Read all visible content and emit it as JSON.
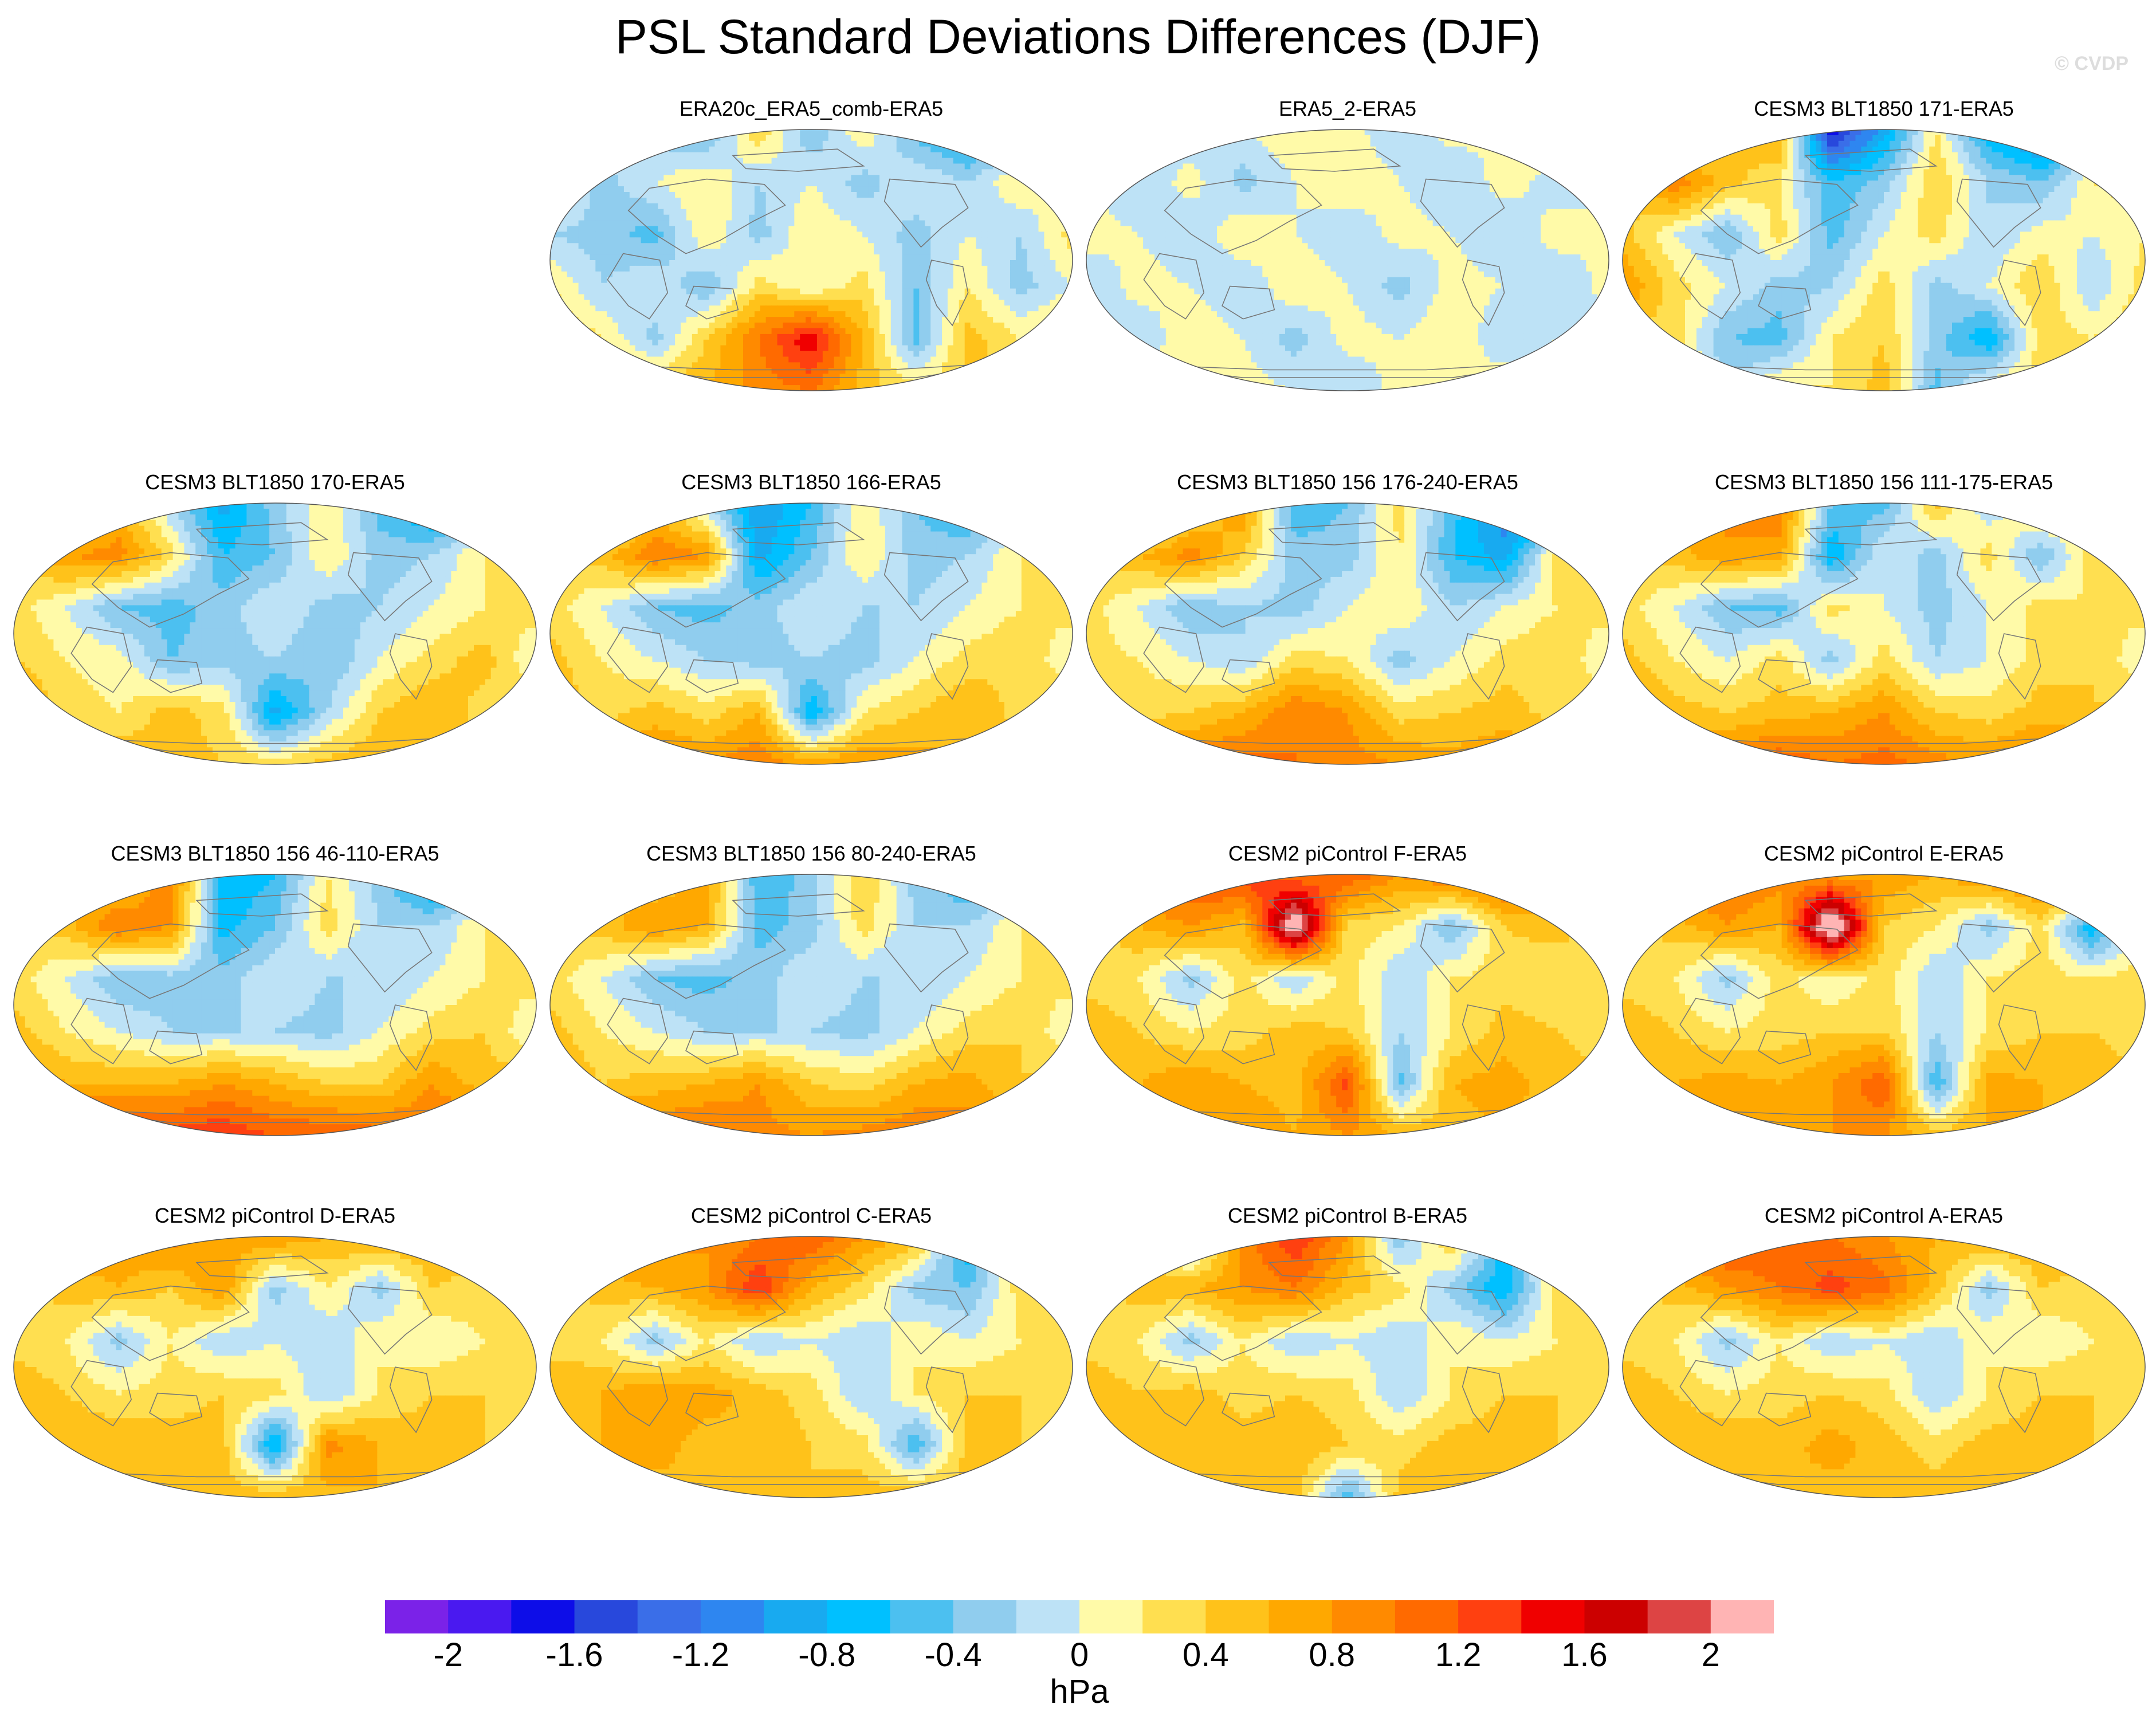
{
  "title": "PSL Standard Deviations Differences (DJF)",
  "watermark": "© CVDP",
  "panels": [
    {
      "title": "ERA20c_ERA5_comb-ERA5",
      "base": 0.0,
      "field": [
        [
          0,
          0,
          -0.3,
          -0.5,
          0.4,
          -0.4,
          0.2,
          -0.5,
          -0.9,
          -0.4,
          0
        ],
        [
          0.3,
          -0.3,
          0,
          0.2,
          -0.2,
          0,
          -0.3,
          0,
          -0.2,
          0.2,
          -0.1
        ],
        [
          -0.2,
          -0.3,
          -0.5,
          0.2,
          -0.3,
          0.2,
          0,
          -0.3,
          0,
          -0.2,
          0.3
        ],
        [
          0.2,
          -0.2,
          0,
          -0.4,
          0.3,
          0,
          0.3,
          -0.4,
          0.2,
          -0.3,
          0
        ],
        [
          0.5,
          0.2,
          -0.3,
          0.4,
          1.0,
          1.6,
          0.6,
          -0.5,
          0.5,
          0.2,
          0.4
        ],
        [
          0.3,
          0.4,
          0.5,
          0.6,
          0.9,
          1.0,
          0.5,
          0.3,
          0.4,
          0.5,
          0.3
        ]
      ]
    },
    {
      "title": "ERA5_2-ERA5",
      "base": 0.0,
      "field": [
        [
          0.1,
          0.2,
          -0.2,
          0,
          0.2,
          0.1,
          -0.2,
          0.1,
          0,
          0.2,
          0.1
        ],
        [
          0,
          -0.2,
          0.1,
          -0.3,
          0,
          0.2,
          0,
          -0.2,
          0.1,
          -0.1,
          0
        ],
        [
          0.1,
          0,
          -0.2,
          0.2,
          0,
          -0.2,
          0.1,
          0,
          -0.2,
          0.1,
          0
        ],
        [
          -0.2,
          0.1,
          0,
          -0.2,
          0.2,
          0,
          -0.3,
          0.1,
          0,
          -0.2,
          0.1
        ],
        [
          0.1,
          -0.2,
          0.2,
          0,
          -0.3,
          0.1,
          0,
          0.2,
          -0.2,
          0,
          -0.1
        ],
        [
          0,
          0.2,
          -0.1,
          0.1,
          0,
          -0.2,
          0.1,
          0,
          0.2,
          0.1,
          0
        ]
      ]
    },
    {
      "title": "CESM3 BLT1850 171-ERA5",
      "base": 0.0,
      "field": [
        [
          -0.3,
          -0.5,
          0.4,
          0.7,
          -1.8,
          -0.9,
          0.2,
          -0.8,
          -1.3,
          -0.6,
          0
        ],
        [
          0.3,
          1.0,
          0.5,
          0.2,
          -0.6,
          -0.3,
          0.4,
          -0.2,
          -0.4,
          0.2,
          0.3
        ],
        [
          0.5,
          0,
          -0.4,
          0.3,
          -0.5,
          0,
          0.3,
          -0.2,
          0.1,
          0,
          0.2
        ],
        [
          0.8,
          0.3,
          0,
          -0.3,
          -0.2,
          0.3,
          -0.3,
          0,
          0.4,
          -0.2,
          0.3
        ],
        [
          0.4,
          0.3,
          -0.4,
          -0.5,
          0.2,
          0.4,
          -0.3,
          -0.8,
          0.3,
          0.2,
          0.4
        ],
        [
          0.2,
          0.4,
          -0.2,
          0.3,
          0.2,
          0.5,
          -0.5,
          0.2,
          0.3,
          0.2,
          0
        ]
      ]
    },
    {
      "title": "CESM3 BLT1850 170-ERA5",
      "base": 0.0,
      "field": [
        [
          -0.8,
          -0.3,
          0.6,
          -0.2,
          -0.9,
          -0.3,
          0.2,
          -0.5,
          -1.0,
          -0.3,
          0
        ],
        [
          0.3,
          0.8,
          0.9,
          0.3,
          -0.6,
          -0.4,
          0.2,
          -0.3,
          -0.2,
          0.2,
          0.3
        ],
        [
          0.3,
          0,
          -0.4,
          -0.5,
          -0.3,
          0,
          -0.3,
          -0.2,
          0,
          0.2,
          0.3
        ],
        [
          0.4,
          0.2,
          0.1,
          -0.4,
          -0.3,
          -0.2,
          -0.4,
          0,
          0.3,
          0.5,
          0
        ],
        [
          0.8,
          0.3,
          0.2,
          0.5,
          0.3,
          -0.9,
          -0.2,
          0.4,
          0.6,
          0.3,
          0.5
        ],
        [
          0.4,
          0.5,
          0.6,
          0.5,
          0.4,
          0.3,
          0.5,
          0.6,
          0.5,
          0.4,
          0.3
        ]
      ]
    },
    {
      "title": "CESM3 BLT1850 166-ERA5",
      "base": 0.0,
      "field": [
        [
          -0.8,
          -0.5,
          0.5,
          -0.2,
          -1.0,
          -0.6,
          0.2,
          -0.4,
          -0.8,
          -0.2,
          0.5
        ],
        [
          0.3,
          0.5,
          1.0,
          0.8,
          -0.9,
          -0.4,
          0.2,
          -0.3,
          -0.2,
          0.2,
          0.3
        ],
        [
          0.3,
          0,
          -0.4,
          -0.5,
          -0.3,
          0,
          -0.2,
          -0.2,
          0,
          0.2,
          0.3
        ],
        [
          0.5,
          0.2,
          0,
          -0.2,
          -0.3,
          -0.2,
          -0.3,
          0,
          0.3,
          0.4,
          0
        ],
        [
          0.6,
          0.3,
          0.5,
          0.3,
          0.6,
          -0.8,
          0.2,
          0.4,
          0.6,
          0.3,
          0.5
        ],
        [
          0.6,
          0.7,
          0.9,
          0.8,
          1.0,
          0.7,
          0.8,
          0.7,
          0.6,
          0.7,
          0.6
        ]
      ]
    },
    {
      "title": "CESM3 BLT1850 156 176-240-ERA5",
      "base": 0.0,
      "field": [
        [
          -0.6,
          -0.9,
          0.3,
          0.8,
          -0.6,
          -0.4,
          0.3,
          -0.5,
          -1.2,
          -1.4,
          0
        ],
        [
          0.3,
          0.6,
          0.9,
          0.4,
          -0.3,
          -0.3,
          0.2,
          -0.6,
          -0.9,
          0.3,
          0.3
        ],
        [
          0.3,
          0,
          -0.4,
          -0.2,
          -0.3,
          0,
          0.2,
          -0.2,
          0,
          0.2,
          0.3
        ],
        [
          0.3,
          0.2,
          0,
          -0.2,
          0.3,
          0.2,
          -0.3,
          0,
          0.3,
          0.4,
          0
        ],
        [
          0.5,
          0.3,
          0.4,
          0.6,
          1.0,
          0.8,
          0.3,
          0.4,
          0.5,
          0.3,
          0.4
        ],
        [
          0.8,
          0.8,
          1.0,
          1.1,
          1.0,
          0.9,
          0.8,
          0.7,
          0.8,
          0.8,
          0.7
        ]
      ]
    },
    {
      "title": "CESM3 BLT1850 156 111-175-ERA5",
      "base": 0.0,
      "field": [
        [
          0.5,
          0.8,
          0.8,
          1.0,
          -0.4,
          -0.5,
          0.5,
          -0.2,
          0.4,
          0.5,
          0.3
        ],
        [
          0.3,
          0.5,
          0.8,
          0.7,
          -0.8,
          0,
          -0.3,
          0.3,
          -0.4,
          0.3,
          0.3
        ],
        [
          0.3,
          0,
          -0.4,
          -0.5,
          0.3,
          0,
          -0.3,
          0,
          0.3,
          0.2,
          0.3
        ],
        [
          0.5,
          0.2,
          0,
          0.3,
          -0.3,
          0.3,
          -0.2,
          0,
          0.3,
          0.4,
          0
        ],
        [
          0.8,
          0.5,
          0.4,
          0.5,
          0.6,
          0.8,
          0.4,
          0.3,
          0.5,
          0.4,
          0.5
        ],
        [
          0.8,
          0.9,
          1.0,
          1.2,
          1.0,
          1.1,
          0.9,
          0.8,
          1.0,
          0.9,
          0.8
        ]
      ]
    },
    {
      "title": "CESM3 BLT1850 156 46-110-ERA5",
      "base": 0.0,
      "field": [
        [
          -0.3,
          0.8,
          0.4,
          1.0,
          -0.8,
          -0.6,
          0.2,
          -0.3,
          -1.0,
          -0.3,
          0
        ],
        [
          0.3,
          0.5,
          1.0,
          0.8,
          -0.7,
          -0.4,
          0.3,
          -0.2,
          -0.2,
          0.2,
          0.3
        ],
        [
          0.3,
          0,
          -0.4,
          -0.3,
          -0.3,
          0,
          -0.2,
          -0.2,
          0,
          0.2,
          0.3
        ],
        [
          0.5,
          0.2,
          0,
          -0.2,
          -0.2,
          -0.2,
          -0.3,
          0,
          0.3,
          0.4,
          0
        ],
        [
          0.8,
          0.6,
          0.6,
          0.6,
          0.8,
          0.6,
          0.4,
          0.4,
          0.8,
          0.5,
          0.5
        ],
        [
          1.2,
          1.4,
          1.3,
          1.3,
          1.4,
          1.2,
          1.2,
          1.1,
          1.0,
          1.1,
          1.0
        ]
      ]
    },
    {
      "title": "CESM3 BLT1850 156 80-240-ERA5",
      "base": 0.0,
      "field": [
        [
          0.3,
          0.5,
          0.4,
          0.7,
          -0.6,
          -0.3,
          0.4,
          -0.3,
          -0.7,
          -0.2,
          0.3
        ],
        [
          0.3,
          0.5,
          0.8,
          0.6,
          -0.5,
          -0.3,
          0.3,
          -0.2,
          -0.2,
          0.2,
          0.3
        ],
        [
          0.3,
          0,
          -0.4,
          -0.5,
          -0.3,
          0,
          -0.2,
          -0.2,
          0,
          0.2,
          0.3
        ],
        [
          0.5,
          0.2,
          0,
          -0.2,
          -0.2,
          -0.2,
          -0.3,
          0,
          0.3,
          0.4,
          0
        ],
        [
          0.7,
          0.4,
          0.5,
          0.6,
          0.8,
          0.4,
          0.3,
          0.6,
          0.7,
          0.4,
          0.5
        ],
        [
          0.8,
          1.0,
          1.0,
          1.1,
          0.9,
          0.8,
          0.9,
          1.0,
          0.9,
          0.8,
          0.7
        ]
      ]
    },
    {
      "title": "CESM2 piControl F-ERA5",
      "base": 0.0,
      "field": [
        [
          1.0,
          1.2,
          1.3,
          1.4,
          1.0,
          1.2,
          0.8,
          1.1,
          1.2,
          1.0,
          0.9
        ],
        [
          0.3,
          0.6,
          0.8,
          0.5,
          2.4,
          0.3,
          0.2,
          -0.4,
          0.4,
          0.5,
          0.3
        ],
        [
          0.3,
          0.2,
          -0.3,
          0.3,
          -0.2,
          0.3,
          -0.2,
          0.2,
          0.3,
          0.2,
          0.3
        ],
        [
          0.6,
          0.4,
          0.2,
          0.3,
          0.5,
          0.4,
          -0.2,
          0.2,
          0.5,
          0.4,
          0.3
        ],
        [
          0.5,
          0.6,
          0.8,
          0.6,
          0.5,
          1.3,
          -0.5,
          0.6,
          0.7,
          0.5,
          0.4
        ],
        [
          0.4,
          0.5,
          0.6,
          0.8,
          0.6,
          0.8,
          0.6,
          0.5,
          0.6,
          0.5,
          0.4
        ]
      ]
    },
    {
      "title": "CESM2 piControl E-ERA5",
      "base": 0.0,
      "field": [
        [
          0.8,
          1.2,
          1.0,
          0.9,
          0.7,
          0.8,
          0.6,
          0.9,
          1.0,
          1.2,
          0.8
        ],
        [
          0.3,
          0.5,
          0.8,
          0.6,
          2.6,
          0.4,
          0.2,
          -0.3,
          0.3,
          -0.8,
          0.3
        ],
        [
          0.3,
          0.2,
          -0.3,
          0.3,
          0,
          0.3,
          -0.2,
          0.2,
          0.3,
          0.2,
          0.3
        ],
        [
          0.6,
          0.4,
          0.2,
          0.3,
          0.4,
          0.4,
          -0.2,
          0.2,
          0.4,
          0.4,
          0.3
        ],
        [
          0.5,
          0.6,
          0.7,
          0.6,
          0.8,
          1.2,
          -0.6,
          0.7,
          0.6,
          0.5,
          0.4
        ],
        [
          0.4,
          0.5,
          0.6,
          0.7,
          0.8,
          0.8,
          0.5,
          0.6,
          0.6,
          0.5,
          0.4
        ]
      ]
    },
    {
      "title": "CESM2 piControl D-ERA5",
      "base": 0.0,
      "field": [
        [
          0.6,
          0.8,
          0.7,
          0.9,
          0.7,
          0.8,
          0.6,
          0.7,
          0.6,
          0.5,
          0.4
        ],
        [
          0.3,
          0.5,
          0.6,
          0.4,
          0.8,
          -0.3,
          0.2,
          -0.3,
          0.4,
          0.3,
          0.3
        ],
        [
          0.3,
          0.2,
          -0.3,
          0.2,
          -0.2,
          0,
          -0.2,
          0.2,
          0,
          0.2,
          0.3
        ],
        [
          0.6,
          0.4,
          0.2,
          0.3,
          0.4,
          0.3,
          -0.2,
          0.2,
          0.4,
          0.4,
          0.3
        ],
        [
          0.5,
          0.6,
          0.6,
          0.5,
          0.5,
          -0.9,
          0.9,
          0.6,
          0.5,
          0.4,
          0.4
        ],
        [
          0.4,
          0.5,
          0.5,
          0.6,
          0.5,
          0.6,
          0.5,
          0.6,
          0.5,
          0.4,
          0.4
        ]
      ]
    },
    {
      "title": "CESM2 piControl C-ERA5",
      "base": 0.0,
      "field": [
        [
          0.6,
          0.8,
          0.9,
          0.8,
          1.0,
          1.2,
          0.8,
          0.6,
          -0.9,
          0.5,
          0.4
        ],
        [
          0.3,
          0.5,
          0.6,
          0.8,
          1.4,
          0.6,
          0.3,
          -0.3,
          -0.4,
          0.3,
          0.3
        ],
        [
          0.3,
          0.2,
          -0.3,
          0.2,
          -0.2,
          0,
          -0.2,
          0.2,
          0,
          0.2,
          0.3
        ],
        [
          0.6,
          0.6,
          0.8,
          0.7,
          0.5,
          0.3,
          -0.2,
          0.2,
          0.4,
          0.4,
          0.3
        ],
        [
          0.5,
          0.6,
          0.7,
          0.5,
          0.6,
          0.4,
          0.3,
          -0.6,
          0.5,
          0.4,
          0.4
        ],
        [
          0.4,
          0.5,
          0.5,
          0.6,
          0.5,
          0.4,
          0.5,
          0.6,
          0.5,
          0.4,
          0.4
        ]
      ]
    },
    {
      "title": "CESM2 piControl B-ERA5",
      "base": 0.0,
      "field": [
        [
          0.4,
          0.6,
          -0.5,
          0.9,
          1.4,
          0.8,
          -0.4,
          0.5,
          -0.6,
          0.3,
          0.4
        ],
        [
          0.3,
          0.5,
          0.6,
          0.8,
          1.0,
          0.5,
          0.3,
          -0.3,
          -0.8,
          0.3,
          0.3
        ],
        [
          0.3,
          0.2,
          -0.3,
          0.2,
          -0.2,
          0,
          -0.2,
          0.2,
          0,
          0.2,
          0.3
        ],
        [
          0.6,
          0.4,
          0.5,
          0.3,
          0.4,
          0.3,
          -0.2,
          0.2,
          0.4,
          0.4,
          0.3
        ],
        [
          0.5,
          0.6,
          0.6,
          0.5,
          0.6,
          0.4,
          0.3,
          0.5,
          0.5,
          0.4,
          0.4
        ],
        [
          0.4,
          0.5,
          0.5,
          0.6,
          0.5,
          -0.6,
          0.5,
          0.6,
          0.5,
          0.4,
          0.4
        ]
      ]
    },
    {
      "title": "CESM2 piControl A-ERA5",
      "base": 0.0,
      "field": [
        [
          0.6,
          1.0,
          1.3,
          1.2,
          1.0,
          0.8,
          0.6,
          0.7,
          0.6,
          0.5,
          0.4
        ],
        [
          0.3,
          0.5,
          0.8,
          1.0,
          1.3,
          1.1,
          0.5,
          -0.3,
          0.4,
          0.3,
          0.3
        ],
        [
          0.3,
          0.2,
          -0.3,
          0.2,
          -0.2,
          0,
          -0.2,
          0.2,
          0,
          0.2,
          0.3
        ],
        [
          0.6,
          0.4,
          0.2,
          0.3,
          0.4,
          0.3,
          -0.2,
          0.2,
          0.4,
          0.4,
          0.3
        ],
        [
          0.5,
          0.6,
          0.6,
          0.5,
          0.7,
          0.5,
          0.3,
          0.5,
          0.5,
          0.4,
          0.4
        ],
        [
          0.4,
          0.5,
          0.5,
          0.6,
          0.5,
          0.6,
          0.5,
          0.6,
          0.5,
          0.4,
          0.4
        ]
      ]
    }
  ],
  "colorbar": {
    "levels": [
      -2.2,
      -2.0,
      -1.8,
      -1.6,
      -1.4,
      -1.2,
      -1.0,
      -0.8,
      -0.6,
      -0.4,
      -0.2,
      0,
      0.2,
      0.4,
      0.6,
      0.8,
      1.0,
      1.2,
      1.4,
      1.6,
      1.8,
      2.0,
      2.2
    ],
    "colors": [
      "#7b22e8",
      "#4a19f0",
      "#0d0de8",
      "#2848dc",
      "#3a6ee8",
      "#2e86f0",
      "#18aaf0",
      "#00c0ff",
      "#4cc0f0",
      "#90cdee",
      "#bde2f6",
      "#fffaa8",
      "#ffdf50",
      "#ffc21a",
      "#ffa800",
      "#ff8a00",
      "#ff6a00",
      "#ff4010",
      "#f00000",
      "#cc0000",
      "#dd4444",
      "#ffb4b4"
    ],
    "tick_labels": [
      "-2",
      "-1.6",
      "-1.2",
      "-0.8",
      "-0.4",
      "0",
      "0.4",
      "0.8",
      "1.2",
      "1.6",
      "2"
    ],
    "unit": "hPa"
  }
}
